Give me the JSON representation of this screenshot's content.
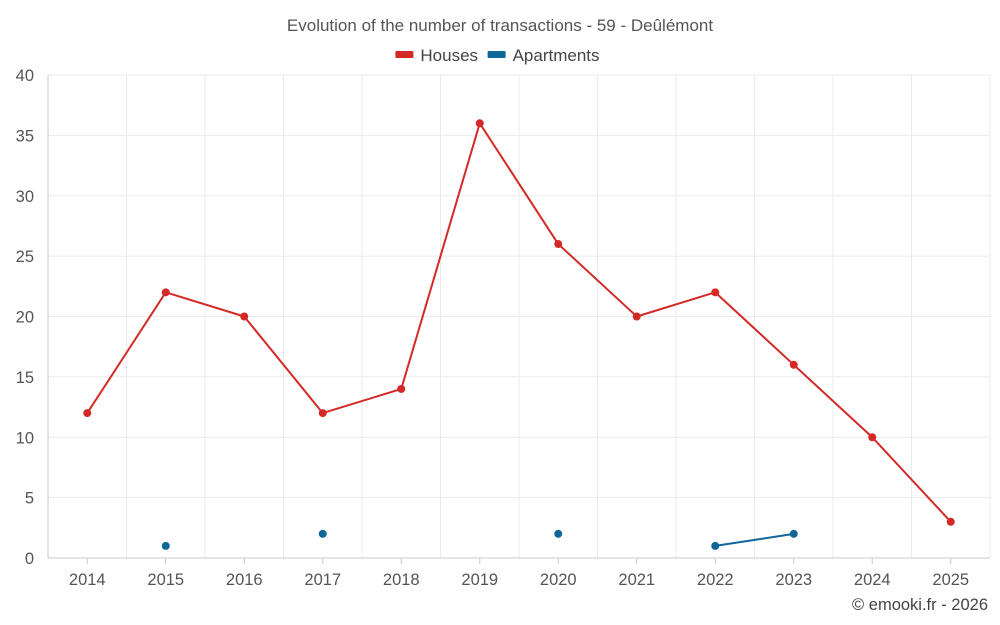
{
  "chart_data": {
    "type": "line",
    "title": "Evolution of the number of transactions - 59 - Deûlémont",
    "xlabel": "",
    "ylabel": "",
    "ylim": [
      0,
      40
    ],
    "yticks": [
      0,
      5,
      10,
      15,
      20,
      25,
      30,
      35,
      40
    ],
    "grid": true,
    "legend_position": "top-center",
    "categories": [
      "2014",
      "2015",
      "2016",
      "2017",
      "2018",
      "2019",
      "2020",
      "2021",
      "2022",
      "2023",
      "2024",
      "2025"
    ],
    "series": [
      {
        "name": "Houses",
        "color": "#d32a27",
        "values": [
          12,
          22,
          20,
          12,
          14,
          36,
          26,
          20,
          22,
          16,
          10,
          3
        ]
      },
      {
        "name": "Apartments",
        "color": "#0f6699",
        "values": [
          null,
          1,
          null,
          2,
          null,
          null,
          2,
          null,
          1,
          2,
          null,
          null
        ]
      }
    ]
  },
  "credit": "© emooki.fr - 2026"
}
